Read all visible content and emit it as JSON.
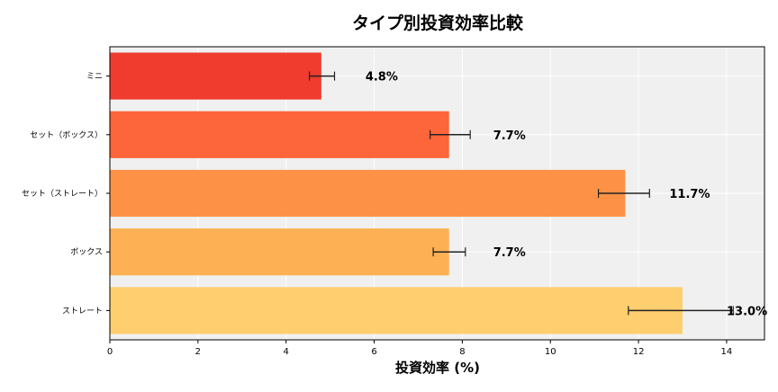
{
  "chart_data": {
    "type": "bar",
    "orientation": "horizontal",
    "title": "タイプ別投資効率比較",
    "xlabel": "投資効率 (%)",
    "ylabel": "",
    "xlim": [
      0,
      14.86
    ],
    "xticks": [
      0,
      2,
      4,
      6,
      8,
      10,
      12,
      14
    ],
    "grid": true,
    "categories": [
      "ミニ",
      "セット（ボックス）",
      "セット（ストレート）",
      "ボックス",
      "ストレート"
    ],
    "values": [
      4.8,
      7.7,
      11.7,
      7.7,
      13.0
    ],
    "error_low": [
      4.53,
      7.27,
      11.09,
      7.34,
      11.77
    ],
    "error_high": [
      5.1,
      8.18,
      12.25,
      8.07,
      14.15
    ],
    "data_labels": [
      "4.8%",
      "7.7%",
      "11.7%",
      "7.7%",
      "13.0%"
    ],
    "colors": [
      "#ee3124",
      "#fd5d2f",
      "#fd8c3c",
      "#feac4c",
      "#fecb67"
    ],
    "background": "#f0f0f0"
  }
}
